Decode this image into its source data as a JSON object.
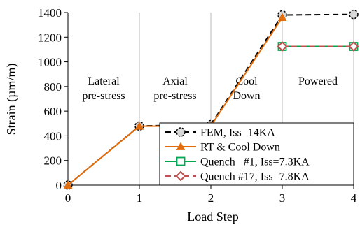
{
  "chart_data": {
    "type": "line",
    "xlabel": "Load Step",
    "ylabel": "Strain (µm/m)",
    "xlim": [
      0,
      4
    ],
    "ylim": [
      0,
      1400
    ],
    "x_ticks": [
      "0",
      "1",
      "2",
      "3",
      "4"
    ],
    "y_ticks": [
      "0",
      "200",
      "400",
      "600",
      "800",
      "1000",
      "1200",
      "1400"
    ],
    "grid": "vertical",
    "legend_placement": "bottom-right",
    "regions": [
      {
        "lines": [
          "Lateral",
          "pre-stress"
        ],
        "x_center": 0.5
      },
      {
        "lines": [
          "Axial",
          "pre-stress"
        ],
        "x_center": 1.5
      },
      {
        "lines": [
          "Cool",
          "Down"
        ],
        "x_center": 2.5
      },
      {
        "lines": [
          "Powered"
        ],
        "x_center": 3.5
      }
    ],
    "series": [
      {
        "name": "FEM, Iss=14KA",
        "x": [
          0,
          1,
          2,
          3,
          4
        ],
        "y": [
          0,
          480,
          490,
          1380,
          1385
        ],
        "color": "#000000",
        "dash": "8,5",
        "marker": "circle",
        "marker_fill": "#d9d9d9"
      },
      {
        "name": "RT & Cool Down",
        "x": [
          0,
          1,
          2,
          3
        ],
        "y": [
          0,
          478,
          480,
          1360
        ],
        "color": "#e46c0a",
        "dash": "",
        "marker": "triangle",
        "marker_fill": "#e46c0a"
      },
      {
        "name": "Quench   #1, Iss=7.3KA",
        "x": [
          3,
          4
        ],
        "y": [
          1125,
          1125
        ],
        "color": "#00a651",
        "dash": "",
        "marker": "square",
        "marker_fill": "#ffffff"
      },
      {
        "name": "Quench #17, Iss=7.8KA",
        "x": [
          3,
          4
        ],
        "y": [
          1125,
          1125
        ],
        "color": "#c0504d",
        "dash": "8,5",
        "marker": "diamond",
        "marker_fill": "#ffffff"
      }
    ]
  }
}
